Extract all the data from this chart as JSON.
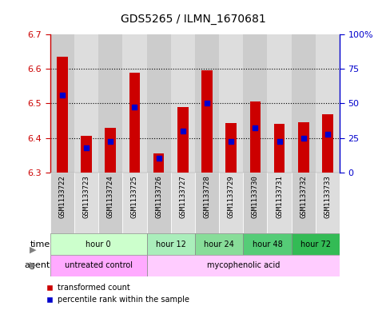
{
  "title": "GDS5265 / ILMN_1670681",
  "samples": [
    "GSM1133722",
    "GSM1133723",
    "GSM1133724",
    "GSM1133725",
    "GSM1133726",
    "GSM1133727",
    "GSM1133728",
    "GSM1133729",
    "GSM1133730",
    "GSM1133731",
    "GSM1133732",
    "GSM1133733"
  ],
  "bar_tops": [
    6.635,
    6.405,
    6.43,
    6.59,
    6.355,
    6.49,
    6.595,
    6.443,
    6.505,
    6.44,
    6.445,
    6.468
  ],
  "bar_bottom": 6.3,
  "blue_marker_values": [
    6.525,
    6.37,
    6.39,
    6.49,
    6.34,
    6.42,
    6.5,
    6.39,
    6.43,
    6.39,
    6.4,
    6.41
  ],
  "ylim": [
    6.3,
    6.7
  ],
  "yticks_left": [
    6.3,
    6.4,
    6.5,
    6.6,
    6.7
  ],
  "yticks_right": [
    0,
    25,
    50,
    75,
    100
  ],
  "ytick_labels_right": [
    "0",
    "25",
    "50",
    "75",
    "100%"
  ],
  "time_groups": [
    {
      "label": "hour 0",
      "start": 0,
      "end": 4,
      "color": "#ccffcc"
    },
    {
      "label": "hour 12",
      "start": 4,
      "end": 6,
      "color": "#aaeebb"
    },
    {
      "label": "hour 24",
      "start": 6,
      "end": 8,
      "color": "#88dd99"
    },
    {
      "label": "hour 48",
      "start": 8,
      "end": 10,
      "color": "#55cc77"
    },
    {
      "label": "hour 72",
      "start": 10,
      "end": 12,
      "color": "#33bb55"
    }
  ],
  "agent_groups": [
    {
      "label": "untreated control",
      "start": 0,
      "end": 4,
      "color": "#ffaaff"
    },
    {
      "label": "mycophenolic acid",
      "start": 4,
      "end": 12,
      "color": "#ffccff"
    }
  ],
  "bar_color": "#cc0000",
  "blue_color": "#0000cc",
  "left_axis_color": "#cc0000",
  "right_axis_color": "#0000cc",
  "sample_box_color": "#cccccc",
  "plot_bg": "#ffffff",
  "grid_color": "#444444"
}
